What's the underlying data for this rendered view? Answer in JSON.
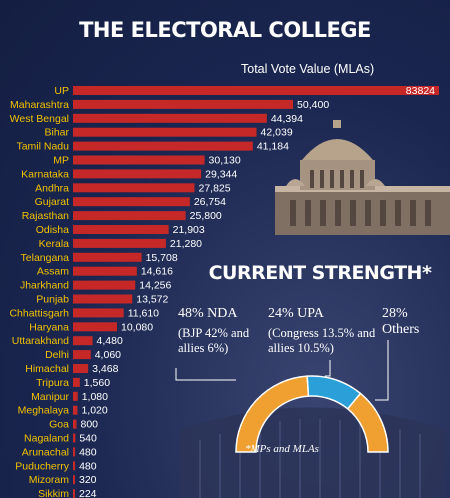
{
  "title": "THE ELECTORAL COLLEGE",
  "chart_data": {
    "type": "bar",
    "orientation": "horizontal",
    "subtitle": "Total Vote Value (MLAs)",
    "categories": [
      "UP",
      "Maharashtra",
      "West Bengal",
      "Bihar",
      "Tamil Nadu",
      "MP",
      "Karnataka",
      "Andhra",
      "Gujarat",
      "Rajasthan",
      "Odisha",
      "Kerala",
      "Telangana",
      "Assam",
      "Jharkhand",
      "Punjab",
      "Chhattisgarh",
      "Haryana",
      "Uttarakhand",
      "Delhi",
      "Himachal",
      "Tripura",
      "Manipur",
      "Meghalaya",
      "Goa",
      "Nagaland",
      "Arunachal",
      "Puducherry",
      "Mizoram",
      "Sikkim"
    ],
    "values": [
      83824,
      50400,
      44394,
      42039,
      41184,
      30130,
      29344,
      27825,
      26754,
      25800,
      21903,
      21280,
      15708,
      14616,
      14256,
      13572,
      11610,
      10080,
      4480,
      4060,
      3468,
      1560,
      1080,
      1020,
      800,
      540,
      480,
      480,
      320,
      224
    ],
    "value_labels": [
      "83824",
      "50,400",
      "44,394",
      "42,039",
      "41,184",
      "30,130",
      "29,344",
      "27,825",
      "26,754",
      "25,800",
      "21,903",
      "21,280",
      "15,708",
      "14,616",
      "14,256",
      "13,572",
      "11,610",
      "10,080",
      "4,480",
      "4,060",
      "3,468",
      "1,560",
      "1,080",
      "1,020",
      "800",
      "540",
      "480",
      "480",
      "320",
      "224"
    ],
    "xlim": [
      0,
      83824
    ],
    "bar_color": "#c62828",
    "label_color": "#f2c200"
  },
  "strength": {
    "title": "CURRENT STRENGTH*",
    "nda": {
      "head": "48% NDA",
      "detail": "(BJP 42% and allies 6%)",
      "value": 48,
      "color": "#f0a030"
    },
    "upa": {
      "head": "24% UPA",
      "detail": "(Congress 13.5% and allies 10.5%)",
      "value": 24,
      "color": "#2a9fd8"
    },
    "others": {
      "head": "28% Others",
      "value": 28,
      "color": "#f0a030"
    },
    "note": "*MPs and MLAs"
  }
}
